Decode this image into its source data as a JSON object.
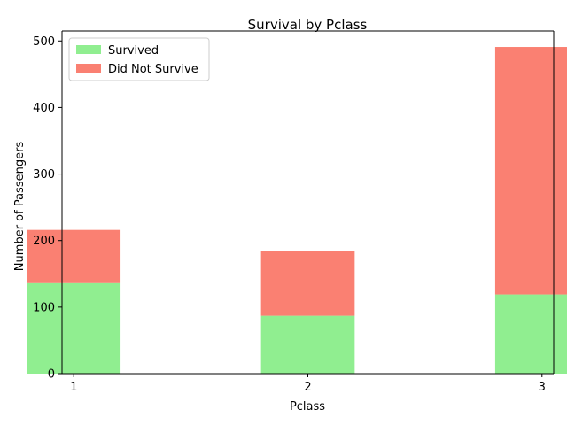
{
  "chart_data": {
    "type": "bar",
    "stacked": true,
    "title": "Survival by Pclass",
    "xlabel": "Pclass",
    "ylabel": "Number of Passengers",
    "categories": [
      "1",
      "2",
      "3"
    ],
    "series": [
      {
        "name": "Survived",
        "values": [
          136,
          87,
          119
        ],
        "color": "#90ee90"
      },
      {
        "name": "Did Not Survive",
        "values": [
          80,
          97,
          372
        ],
        "color": "#fa8072"
      }
    ],
    "ylim": [
      0,
      515
    ],
    "yticks": [
      0,
      100,
      200,
      300,
      400,
      500
    ],
    "legend": "upper-left",
    "grid": false
  }
}
